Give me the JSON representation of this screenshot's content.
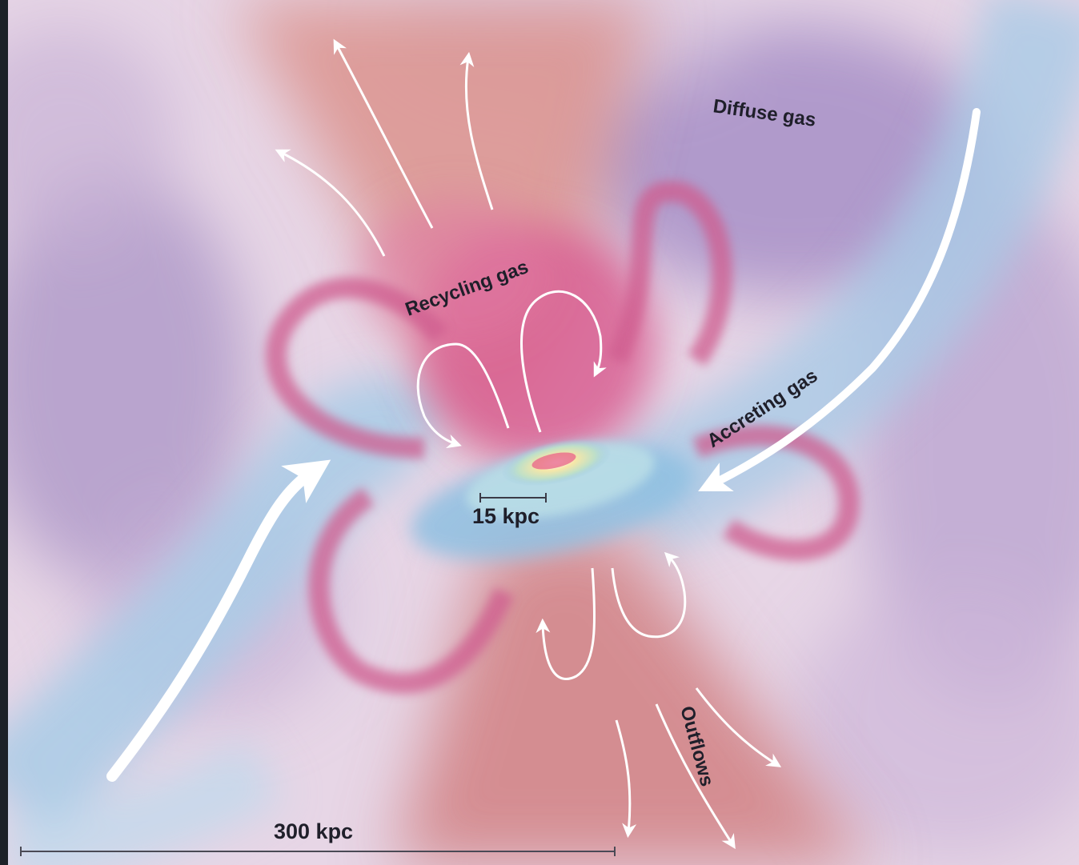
{
  "labels": {
    "diffuse_gas": "Diffuse gas",
    "recycling_gas": "Recycling gas",
    "accreting_gas": "Accreting gas",
    "outflows": "Outflows",
    "scale_small": "15 kpc",
    "scale_large": "300 kpc"
  },
  "colors": {
    "frame": "#1c2128",
    "background": "#e7d6e6",
    "diffuse_purple": "#a993c6",
    "recycling_pink": "#d85f92",
    "outflow_red": "#cf7a7c",
    "accreting_blue": "#a9cbe6",
    "arrow": "#ffffff",
    "text": "#1f1f2a"
  },
  "icons": [
    "outflow-arrow",
    "recycling-loop-arrow",
    "accretion-arrow"
  ]
}
